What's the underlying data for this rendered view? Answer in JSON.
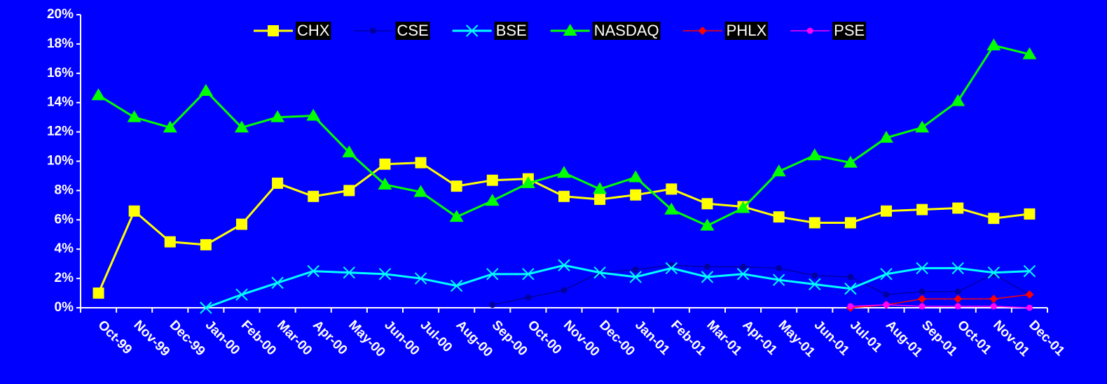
{
  "chart_data": {
    "type": "line",
    "categories": [
      "Oct-99",
      "Nov-99",
      "Dec-99",
      "Jan-00",
      "Feb-00",
      "Mar-00",
      "Apr-00",
      "May-00",
      "Jun-00",
      "Jul-00",
      "Aug-00",
      "Sep-00",
      "Oct-00",
      "Nov-00",
      "Dec-00",
      "Jan-01",
      "Feb-01",
      "Mar-01",
      "Apr-01",
      "May-01",
      "Jun-01",
      "Jul-01",
      "Aug-01",
      "Sep-01",
      "Oct-01",
      "Nov-01",
      "Dec-01"
    ],
    "series": [
      {
        "name": "CHX",
        "color": "#ffff00",
        "marker": "square",
        "values": [
          1.0,
          6.6,
          4.5,
          4.3,
          5.7,
          8.5,
          7.6,
          8.0,
          9.8,
          9.9,
          8.3,
          8.7,
          8.8,
          7.6,
          7.4,
          7.7,
          8.1,
          7.1,
          6.9,
          6.2,
          5.8,
          5.8,
          6.6,
          6.7,
          6.8,
          6.1,
          6.4
        ]
      },
      {
        "name": "CSE",
        "color": "#0000a0",
        "marker": "circle",
        "values": [
          null,
          null,
          null,
          null,
          null,
          null,
          null,
          null,
          null,
          null,
          null,
          0.2,
          0.7,
          1.2,
          2.4,
          2.6,
          2.9,
          2.8,
          2.8,
          2.7,
          2.2,
          2.1,
          0.9,
          1.1,
          1.1,
          2.3,
          0.9
        ]
      },
      {
        "name": "BSE",
        "color": "#00ffff",
        "marker": "x",
        "values": [
          null,
          null,
          null,
          0.0,
          0.9,
          1.7,
          2.5,
          2.4,
          2.3,
          2.0,
          1.5,
          2.3,
          2.3,
          2.9,
          2.4,
          2.1,
          2.7,
          2.1,
          2.3,
          1.9,
          1.6,
          1.3,
          2.3,
          2.7,
          2.7,
          2.4,
          2.5
        ]
      },
      {
        "name": "NASDAQ",
        "color": "#00ff00",
        "marker": "triangle",
        "values": [
          14.5,
          13.0,
          12.3,
          14.8,
          12.3,
          13.0,
          13.1,
          10.6,
          8.4,
          7.9,
          6.2,
          7.3,
          8.5,
          9.2,
          8.1,
          8.9,
          6.7,
          5.6,
          6.8,
          9.3,
          10.4,
          9.9,
          11.6,
          12.3,
          14.1,
          17.9,
          17.3
        ]
      },
      {
        "name": "PHLX",
        "color": "#ff0000",
        "marker": "diamond",
        "values": [
          null,
          null,
          null,
          null,
          null,
          null,
          null,
          null,
          null,
          null,
          null,
          null,
          null,
          null,
          null,
          null,
          null,
          null,
          null,
          null,
          null,
          0.0,
          0.2,
          0.6,
          0.6,
          0.6,
          0.9
        ]
      },
      {
        "name": "PSE",
        "color": "#ff00ff",
        "marker": "circle",
        "values": [
          null,
          null,
          null,
          null,
          null,
          null,
          null,
          null,
          null,
          null,
          null,
          null,
          null,
          null,
          null,
          null,
          null,
          null,
          null,
          null,
          null,
          0.1,
          0.2,
          0.1,
          0.1,
          0.1,
          0.0
        ]
      }
    ],
    "ylim": [
      0,
      20
    ],
    "yticks": [
      {
        "value": 0,
        "label": "0%"
      },
      {
        "value": 2,
        "label": "2%"
      },
      {
        "value": 4,
        "label": "4%"
      },
      {
        "value": 6,
        "label": "6%"
      },
      {
        "value": 8,
        "label": "8%"
      },
      {
        "value": 10,
        "label": "10%"
      },
      {
        "value": 12,
        "label": "12%"
      },
      {
        "value": 14,
        "label": "14%"
      },
      {
        "value": 16,
        "label": "16%"
      },
      {
        "value": 18,
        "label": "18%"
      },
      {
        "value": 20,
        "label": "20%"
      }
    ],
    "legend": "top"
  }
}
